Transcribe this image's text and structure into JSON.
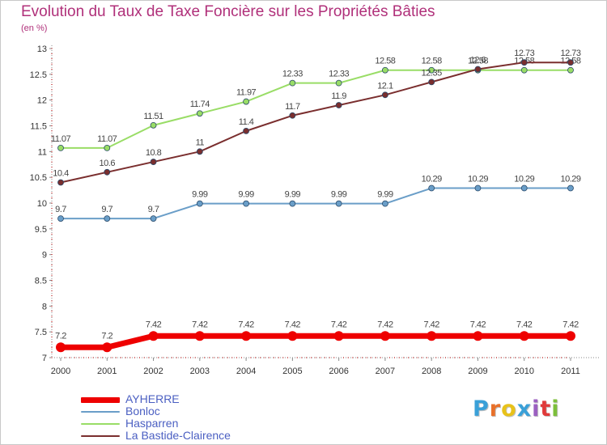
{
  "title": "Evolution du Taux de Taxe Foncière sur les Propriétés Bâties",
  "subtitle": "(en %)",
  "logo": {
    "text": "Proxiti",
    "colors": [
      "#3aa0d8",
      "#e8702a",
      "#e8c21a",
      "#3aa0d8",
      "#9b5fc0",
      "#e03a3a",
      "#7cbf3a"
    ]
  },
  "chart_data": {
    "type": "line",
    "title": "Evolution du Taux de Taxe Foncière sur les Propriétés Bâties",
    "subtitle": "(en %)",
    "x": [
      "2000",
      "2001",
      "2002",
      "2003",
      "2004",
      "2005",
      "2006",
      "2007",
      "2008",
      "2009",
      "2010",
      "2011"
    ],
    "ylim": [
      7,
      13
    ],
    "yticks": [
      "7",
      "7.5",
      "8",
      "8.5",
      "9",
      "9.5",
      "10",
      "10.5",
      "11",
      "11.5",
      "12",
      "12.5",
      "13"
    ],
    "grid": false,
    "legend_position": "bottom-left",
    "series": [
      {
        "name": "AYHERRE",
        "color": "#ee0000",
        "thick": true,
        "values": [
          7.2,
          7.2,
          7.42,
          7.42,
          7.42,
          7.42,
          7.42,
          7.42,
          7.42,
          7.42,
          7.42,
          7.42
        ],
        "labels": [
          "7.2",
          "7.2",
          "7.42",
          "7.42",
          "7.42",
          "7.42",
          "7.42",
          "7.42",
          "7.42",
          "7.42",
          "7.42",
          "7.42"
        ]
      },
      {
        "name": "Bonloc",
        "color": "#6a9ec8",
        "thick": false,
        "values": [
          9.7,
          9.7,
          9.7,
          9.99,
          9.99,
          9.99,
          9.99,
          9.99,
          10.29,
          10.29,
          10.29,
          10.29
        ],
        "labels": [
          "9.7",
          "9.7",
          "9.7",
          "9.99",
          "9.99",
          "9.99",
          "9.99",
          "9.99",
          "10.29",
          "10.29",
          "10.29",
          "10.29"
        ]
      },
      {
        "name": "Hasparren",
        "color": "#99dd66",
        "thick": false,
        "values": [
          11.07,
          11.07,
          11.51,
          11.74,
          11.97,
          12.33,
          12.33,
          12.58,
          12.58,
          12.58,
          12.58,
          12.58
        ],
        "labels": [
          "11.07",
          "11.07",
          "11.51",
          "11.74",
          "11.97",
          "12.33",
          "12.33",
          "12.58",
          "12.58",
          "12.58",
          "12.58",
          "12.58"
        ]
      },
      {
        "name": "La Bastide-Clairence",
        "color": "#7a2e2e",
        "thick": false,
        "values": [
          10.4,
          10.6,
          10.8,
          11,
          11.4,
          11.7,
          11.9,
          12.1,
          12.35,
          12.6,
          12.73,
          12.73
        ],
        "labels": [
          "10.4",
          "10.6",
          "10.8",
          "11",
          "11.4",
          "11.7",
          "11.9",
          "12.1",
          "12.35",
          "12.6",
          "12.73",
          "12.73"
        ]
      }
    ]
  }
}
